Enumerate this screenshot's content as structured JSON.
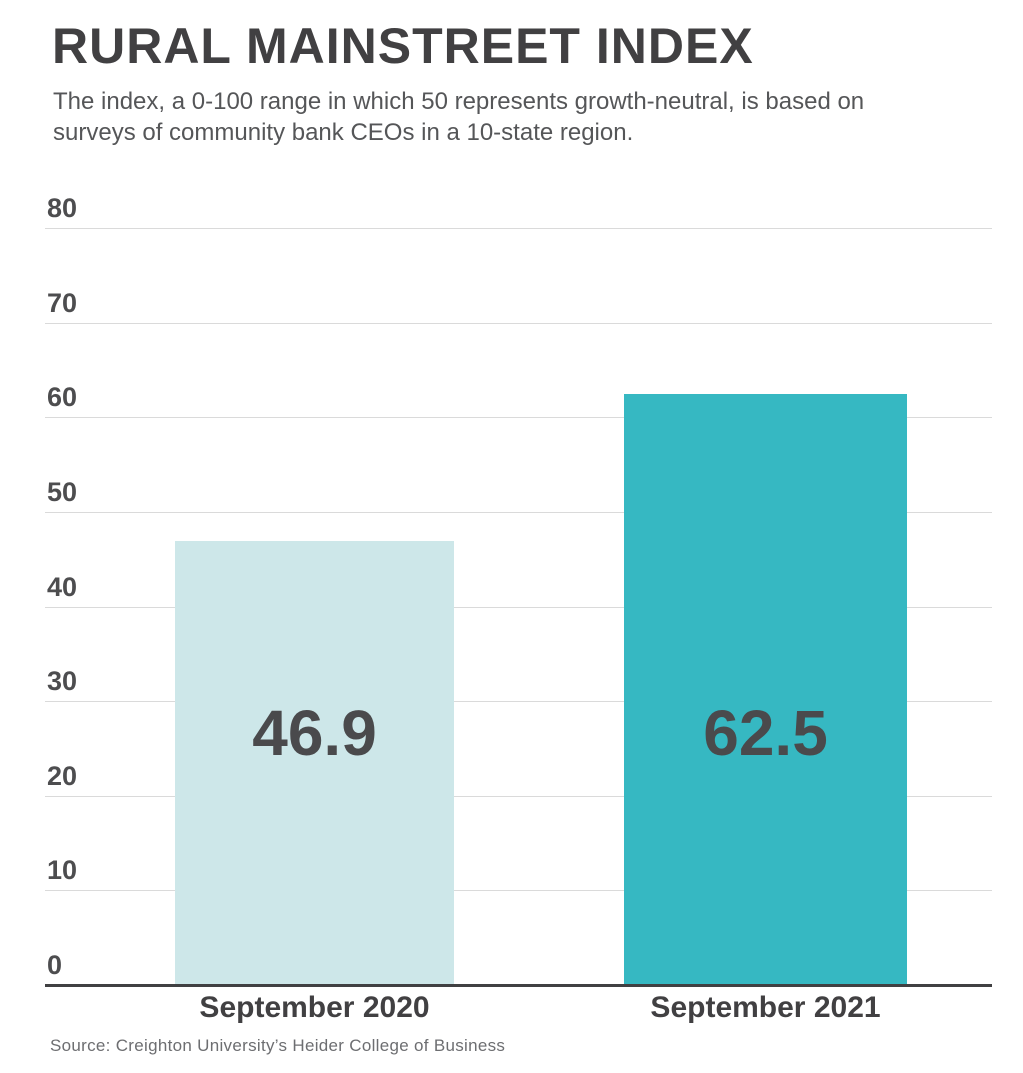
{
  "header": {
    "title": "RURAL MAINSTREET INDEX",
    "subtitle": "The index, a 0-100 range in which 50 represents growth-neutral, is based on surveys of community bank CEOs in a 10-state region."
  },
  "footer": {
    "source": "Source: Creighton University’s Heider College of Business"
  },
  "colors": {
    "bar_2020": "#cde7e9",
    "bar_2021": "#36b8c2",
    "grid": "#dadada",
    "axis": "#404042",
    "text_dark": "#414042",
    "text_value": "#4a4a4c",
    "text_source": "#6d6e71"
  },
  "chart_data": {
    "type": "bar",
    "title": "RURAL MAINSTREET INDEX",
    "subtitle": "The index, a 0-100 range in which 50 represents growth-neutral, is based on surveys of community bank CEOs in a 10-state region.",
    "categories": [
      "September 2020",
      "September 2021"
    ],
    "values": [
      46.9,
      62.5
    ],
    "value_labels": [
      "46.9",
      "62.5"
    ],
    "bar_colors": [
      "#cde7e9",
      "#36b8c2"
    ],
    "xlabel": "",
    "ylabel": "",
    "ylim": [
      0,
      80
    ],
    "yticks": [
      0,
      10,
      20,
      30,
      40,
      50,
      60,
      70,
      80
    ],
    "grid": true,
    "legend": false,
    "data_labels_inside_bars": true,
    "source": "Source: Creighton University’s Heider College of Business"
  }
}
